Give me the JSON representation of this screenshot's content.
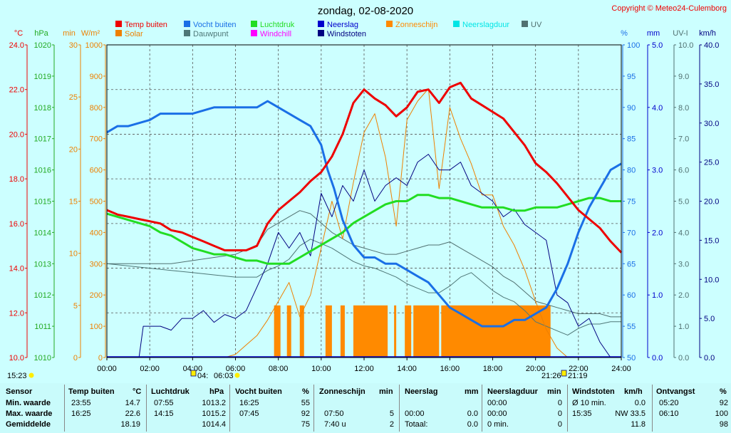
{
  "title": "zondag, 02-08-2020",
  "copyright": "Copyright © Meteo24-Culemborg",
  "colors": {
    "background": "#ccffff",
    "temp": "#ee0000",
    "humidity": "#1a6fe6",
    "pressure": "#22dd22",
    "solar": "#ee8000",
    "dewpoint": "#4e7777",
    "sunshine": "#ff8a00",
    "windgust": "#000080",
    "neerslag": "#0000cc",
    "windchill": "#ff00ff",
    "neerslagduur": "#00e5e5",
    "uv": "#507070"
  },
  "legend": [
    {
      "label": "Temp buiten",
      "color": "#ee0000",
      "icon": "square"
    },
    {
      "label": "Vocht buiten",
      "color": "#1a6fe6",
      "icon": "square"
    },
    {
      "label": "Luchtdruk",
      "color": "#22dd22",
      "icon": "square"
    },
    {
      "label": "Neerslag",
      "color": "#0000cc",
      "icon": "square"
    },
    {
      "label": "Zonneschijn",
      "color": "#ff8a00",
      "icon": "square"
    },
    {
      "label": "Neerslagduur",
      "color": "#00e5e5",
      "icon": "square"
    },
    {
      "label": "UV",
      "color": "#507070",
      "icon": "square"
    },
    {
      "label": "Solar",
      "color": "#ee8000",
      "icon": "square"
    },
    {
      "label": "Dauwpunt",
      "color": "#4e7777",
      "icon": "square"
    },
    {
      "label": "Windchill",
      "color": "#ff00ff",
      "icon": "square"
    },
    {
      "label": "Windstoten",
      "color": "#000080",
      "icon": "square"
    }
  ],
  "chart_data": {
    "type": "line",
    "x_ticks": [
      "00:00",
      "02:00",
      "04:00",
      "06:00",
      "08:00",
      "10:00",
      "12:00",
      "14:00",
      "16:00",
      "18:00",
      "20:00",
      "22:00",
      "24:00"
    ],
    "x_range_hours": [
      0,
      24
    ],
    "axes": {
      "temp": {
        "unit": "°C",
        "range": [
          10,
          24
        ],
        "ticks": [
          "10.0",
          "12.0",
          "14.0",
          "16.0",
          "18.0",
          "20.0",
          "22.0",
          "24.0"
        ]
      },
      "pressure": {
        "unit": "hPa",
        "range": [
          1010,
          1020
        ],
        "ticks": [
          "1010",
          "1011",
          "1012",
          "1013",
          "1014",
          "1015",
          "1016",
          "1017",
          "1018",
          "1019",
          "1020"
        ]
      },
      "sunshine_min": {
        "unit": "min",
        "range": [
          0,
          30
        ],
        "ticks": [
          "0",
          "5",
          "10",
          "15",
          "20",
          "25",
          "30"
        ]
      },
      "solar": {
        "unit": "W/m²",
        "range": [
          0,
          1000
        ],
        "ticks": [
          "0",
          "100",
          "200",
          "300",
          "400",
          "500",
          "600",
          "700",
          "800",
          "900",
          "1000"
        ]
      },
      "humidity": {
        "unit": "%",
        "range": [
          50,
          100
        ],
        "ticks": [
          "50",
          "55",
          "60",
          "65",
          "70",
          "75",
          "80",
          "85",
          "90",
          "95",
          "100"
        ]
      },
      "rain": {
        "unit": "mm",
        "range": [
          0,
          5
        ],
        "ticks": [
          "0.0",
          "1.0",
          "2.0",
          "3.0",
          "4.0",
          "5.0"
        ]
      },
      "uv": {
        "unit": "UV-I",
        "range": [
          0,
          10
        ],
        "ticks": [
          "0.0",
          "1.0",
          "2.0",
          "3.0",
          "4.0",
          "5.0",
          "6.0",
          "7.0",
          "8.0",
          "9.0",
          "10.0"
        ]
      },
      "wind": {
        "unit": "km/h",
        "range": [
          0,
          40
        ],
        "ticks": [
          "0.0",
          "5.0",
          "10.0",
          "15.0",
          "20.0",
          "25.0",
          "30.0",
          "35.0",
          "40.0"
        ]
      }
    },
    "series": [
      {
        "name": "Temp buiten",
        "axis": "temp",
        "x": [
          0,
          0.5,
          1,
          1.5,
          2,
          2.5,
          3,
          3.5,
          4,
          4.5,
          5,
          5.5,
          6,
          6.5,
          7,
          7.5,
          8,
          8.5,
          9,
          9.5,
          10,
          10.5,
          11,
          11.5,
          12,
          12.5,
          13,
          13.5,
          14,
          14.5,
          15,
          15.5,
          16,
          16.5,
          17,
          17.5,
          18,
          18.5,
          19,
          19.5,
          20,
          20.5,
          21,
          21.5,
          22,
          22.5,
          23,
          23.5,
          24
        ],
        "y": [
          16.6,
          16.4,
          16.3,
          16.2,
          16.1,
          16.0,
          15.7,
          15.6,
          15.4,
          15.2,
          15.0,
          14.8,
          14.8,
          14.8,
          15.0,
          16.0,
          16.6,
          17.0,
          17.4,
          17.9,
          18.3,
          19.0,
          20.0,
          21.4,
          22.0,
          21.6,
          21.3,
          20.8,
          21.2,
          21.9,
          22.0,
          21.4,
          22.1,
          22.3,
          21.6,
          21.3,
          21.0,
          20.7,
          20.1,
          19.5,
          18.7,
          18.3,
          17.8,
          17.2,
          16.6,
          16.2,
          15.8,
          15.2,
          14.7
        ]
      },
      {
        "name": "Vocht buiten",
        "axis": "humidity",
        "x": [
          0,
          0.5,
          1,
          2,
          2.5,
          3,
          4,
          5,
          6,
          7,
          7.5,
          8,
          8.5,
          9,
          9.5,
          10,
          10.3,
          10.6,
          11,
          11.5,
          12,
          12.5,
          13,
          13.5,
          14,
          14.5,
          15,
          15.5,
          16,
          16.5,
          17,
          17.5,
          18,
          18.5,
          19,
          19.5,
          20,
          20.5,
          21,
          21.5,
          22,
          22.5,
          23,
          23.5,
          24
        ],
        "y": [
          86,
          87,
          87,
          88,
          89,
          89,
          89,
          90,
          90,
          90,
          91,
          90,
          89,
          88,
          87,
          84,
          80,
          77,
          72,
          68,
          66,
          66,
          65,
          65,
          64,
          63,
          62,
          60,
          58,
          57,
          56,
          55,
          55,
          55,
          56,
          56,
          57,
          58,
          61,
          65,
          70,
          74,
          77,
          80,
          81
        ]
      },
      {
        "name": "Luchtdruk",
        "axis": "pressure",
        "x": [
          0,
          0.5,
          1,
          1.5,
          2,
          2.5,
          3,
          3.5,
          4,
          4.5,
          5,
          5.5,
          6,
          6.5,
          7,
          7.5,
          8,
          8.5,
          9,
          9.5,
          10,
          10.5,
          11,
          11.5,
          12,
          12.5,
          13,
          13.5,
          14,
          14.5,
          15,
          15.5,
          16,
          16.5,
          17,
          17.5,
          18,
          18.5,
          19,
          19.5,
          20,
          20.5,
          21,
          21.5,
          22,
          22.5,
          23,
          23.5,
          24
        ],
        "y": [
          1014.6,
          1014.5,
          1014.4,
          1014.3,
          1014.2,
          1014.0,
          1013.9,
          1013.7,
          1013.5,
          1013.4,
          1013.3,
          1013.3,
          1013.2,
          1013.1,
          1013.1,
          1013.0,
          1013.0,
          1013.0,
          1013.2,
          1013.4,
          1013.6,
          1013.8,
          1014.0,
          1014.3,
          1014.5,
          1014.7,
          1014.9,
          1015.0,
          1015.0,
          1015.2,
          1015.2,
          1015.1,
          1015.1,
          1015.0,
          1014.9,
          1014.8,
          1014.8,
          1014.8,
          1014.7,
          1014.7,
          1014.8,
          1014.8,
          1014.8,
          1014.9,
          1015.0,
          1015.1,
          1015.1,
          1015.0,
          1015.0
        ]
      },
      {
        "name": "Dauwpunt",
        "axis": "temp",
        "x": [
          0,
          1,
          2,
          3,
          4,
          5,
          6,
          7,
          7.5,
          8,
          8.5,
          9,
          9.5,
          10,
          10.5,
          11,
          11.5,
          12,
          12.5,
          13,
          13.5,
          14,
          14.5,
          15,
          15.5,
          16,
          16.5,
          17,
          17.5,
          18,
          18.5,
          19,
          19.5,
          20,
          20.5,
          21,
          21.5,
          22,
          22.5,
          23,
          23.5,
          24
        ],
        "y": [
          14.2,
          14.1,
          14.0,
          13.9,
          13.8,
          13.7,
          13.6,
          13.6,
          13.9,
          14.1,
          14.4,
          15.0,
          15.3,
          15.1,
          14.9,
          14.6,
          14.3,
          14.1,
          14.0,
          13.8,
          13.6,
          13.3,
          13.1,
          12.9,
          12.9,
          13.2,
          13.6,
          13.8,
          13.4,
          13.0,
          12.7,
          12.5,
          12.1,
          11.6,
          11.4,
          11.2,
          11.0,
          11.3,
          11.5,
          11.5,
          11.6,
          11.6
        ]
      },
      {
        "name": "Windstoten",
        "axis": "wind",
        "x": [
          0,
          1,
          1.5,
          1.7,
          2,
          2.5,
          3,
          3.5,
          4,
          4.5,
          5,
          5.5,
          6,
          6.5,
          7,
          7.5,
          8,
          8.5,
          9,
          9.5,
          10,
          10.5,
          11,
          11.5,
          12,
          12.5,
          13,
          13.5,
          14,
          14.5,
          15,
          15.5,
          16,
          16.5,
          17,
          17.5,
          18,
          18.5,
          19,
          19.5,
          20,
          20.5,
          21,
          21.5,
          22,
          22.5,
          23,
          23.5,
          24
        ],
        "y": [
          0,
          0,
          0,
          4,
          4,
          4,
          3.5,
          5,
          5,
          6,
          4.5,
          5.5,
          5,
          6,
          9,
          12,
          16,
          14,
          16,
          13,
          21,
          18,
          22,
          20,
          24,
          20,
          22,
          23,
          22,
          25,
          26,
          24,
          24,
          25,
          22,
          21,
          20,
          18,
          19,
          17,
          16,
          15,
          8,
          7,
          4,
          5,
          2,
          0,
          0
        ]
      },
      {
        "name": "UV",
        "axis": "uv",
        "x": [
          0,
          1,
          2,
          3,
          4,
          5,
          6,
          7,
          7.5,
          8,
          8.5,
          9,
          9.5,
          10,
          10.5,
          11,
          11.5,
          12,
          12.5,
          13,
          13.5,
          14,
          14.5,
          15,
          15.5,
          16,
          16.5,
          17,
          17.5,
          18,
          18.5,
          19,
          19.5,
          20,
          20.5,
          21,
          21.5,
          22,
          22.5,
          23,
          23.5,
          24
        ],
        "y": [
          3.0,
          3.0,
          3.0,
          3.0,
          3.1,
          3.2,
          3.3,
          3.6,
          4.1,
          4.3,
          4.5,
          4.7,
          4.6,
          4.3,
          4.0,
          3.8,
          3.6,
          3.5,
          3.4,
          3.3,
          3.3,
          3.4,
          3.5,
          3.6,
          3.6,
          3.7,
          3.5,
          3.3,
          3.1,
          2.9,
          2.6,
          2.4,
          2.1,
          1.8,
          1.7,
          1.6,
          1.5,
          1.4,
          1.4,
          1.4,
          1.3,
          1.3
        ]
      },
      {
        "name": "Solar",
        "axis": "solar",
        "x": [
          0,
          5.5,
          6,
          6.5,
          7,
          7.5,
          8,
          8.5,
          9,
          9.5,
          10,
          10.5,
          11,
          11.5,
          12,
          12.5,
          13,
          13.5,
          14,
          14.5,
          15,
          15.5,
          16,
          16.5,
          17,
          17.5,
          18,
          18.5,
          19,
          19.5,
          20,
          20.5,
          21,
          21.5,
          24
        ],
        "y": [
          0,
          0,
          10,
          40,
          70,
          120,
          180,
          240,
          130,
          200,
          350,
          500,
          380,
          560,
          720,
          780,
          640,
          420,
          760,
          820,
          860,
          540,
          800,
          700,
          620,
          520,
          520,
          420,
          360,
          280,
          180,
          90,
          30,
          0,
          0
        ]
      },
      {
        "name": "Zonneschijn",
        "axis": "sunshine_min",
        "intervals": [
          [
            7.8,
            8.1
          ],
          [
            8.4,
            8.6
          ],
          [
            9.0,
            9.2
          ],
          [
            10.2,
            10.5
          ],
          [
            10.9,
            11.1
          ],
          [
            11.5,
            13.1
          ],
          [
            13.4,
            13.5
          ],
          [
            13.9,
            14.2
          ],
          [
            14.3,
            15.5
          ],
          [
            15.6,
            20.7
          ]
        ],
        "value": 5
      }
    ]
  },
  "sun": {
    "sunrise": "15:23",
    "sunset": "21:26",
    "moonrise": "04:",
    "moonset": "06:03",
    "other": "21:19"
  },
  "table": {
    "headers": {
      "sensor": "Sensor",
      "temp": "Temp buiten",
      "temp_unit": "°C",
      "pressure": "Luchtdruk",
      "pressure_unit": "hPa",
      "humidity": "Vocht buiten",
      "humidity_unit": "%",
      "sunshine": "Zonneschijn",
      "sunshine_unit": "min",
      "rain": "Neerslag",
      "rain_unit": "mm",
      "rainduration": "Neerslagduur",
      "rainduration_unit": "min",
      "wind": "Windstoten",
      "wind_unit": "km/h",
      "dew": "Ontvangst",
      "dew_unit": "%"
    },
    "rows": [
      {
        "label": "Min. waarde",
        "temp_time": "23:55",
        "temp_val": "14.7",
        "pressure_time": "07:55",
        "pressure_val": "1013.2",
        "humidity_time": "16:25",
        "humidity_val": "55",
        "sunshine_time": "",
        "sunshine_val": "",
        "rain_time": "",
        "rain_val": "",
        "rainduration_time": "00:00",
        "rainduration_val": "0",
        "wind_time": "Ø 10 min.",
        "wind_val": "0.0",
        "dew_time": "05:20",
        "dew_val": "92"
      },
      {
        "label": "Max. waarde",
        "temp_time": "16:25",
        "temp_val": "22.6",
        "pressure_time": "14:15",
        "pressure_val": "1015.2",
        "humidity_time": "07:45",
        "humidity_val": "92",
        "sunshine_time": "07:50",
        "sunshine_val": "5",
        "rain_time": "00:00",
        "rain_val": "0.0",
        "rainduration_time": "00:00",
        "rainduration_val": "0",
        "wind_time": "15:35",
        "wind_val": "NW 33.5",
        "dew_time": "06:10",
        "dew_val": "100"
      },
      {
        "label": "Gemiddelde",
        "temp_time": "",
        "temp_val": "18.19",
        "pressure_time": "",
        "pressure_val": "1014.4",
        "humidity_time": "",
        "humidity_val": "75",
        "sunshine_time": "7:40 u",
        "sunshine_val": "2",
        "rain_time": "Totaal:",
        "rain_val": "0.0",
        "rainduration_time": "0 min.",
        "rainduration_val": "0",
        "wind_time": "",
        "wind_val": "11.8",
        "dew_time": "",
        "dew_val": "98"
      }
    ]
  }
}
